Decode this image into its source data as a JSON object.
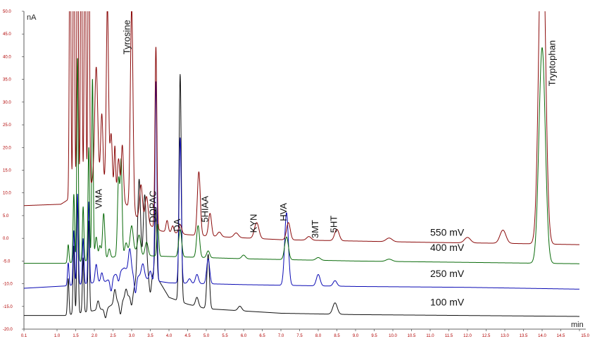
{
  "chart_data": {
    "type": "line",
    "xlabel": "min",
    "ylabel": "nA",
    "xlim": [
      0.1,
      15.0
    ],
    "ylim": [
      -20.0,
      50.0
    ],
    "x_ticks": [
      "0.1",
      "1.0",
      "1.5",
      "2.0",
      "2.5",
      "3.0",
      "3.5",
      "4.0",
      "4.5",
      "5.0",
      "5.5",
      "6.0",
      "6.5",
      "7.0",
      "7.5",
      "8.0",
      "8.5",
      "9.0",
      "9.5",
      "10.0",
      "10.5",
      "11.0",
      "11.5",
      "12.0",
      "12.5",
      "13.0",
      "13.5",
      "14.0",
      "14.5",
      "15.0"
    ],
    "y_ticks": [
      "50.0",
      "45.0",
      "40.0",
      "35.0",
      "30.0",
      "25.0",
      "20.0",
      "15.0",
      "10.0",
      "5.0",
      "0.0",
      "-5.0",
      "-10.0",
      "-15.0",
      "-20.0"
    ],
    "peak_labels": [
      {
        "name": "VMA",
        "x": 2.2,
        "y": 6.5
      },
      {
        "name": "Tyrosine",
        "x": 2.95,
        "y": 40.5
      },
      {
        "name": "DOPAC",
        "x": 3.65,
        "y": 3.5
      },
      {
        "name": "DA",
        "x": 4.3,
        "y": 1.5
      },
      {
        "name": "5HIAA",
        "x": 5.05,
        "y": 3.5
      },
      {
        "name": "KYN",
        "x": 6.35,
        "y": 1.2
      },
      {
        "name": "HVA",
        "x": 7.15,
        "y": 3.8
      },
      {
        "name": "3MT",
        "x": 8.0,
        "y": 0.0
      },
      {
        "name": "5HT",
        "x": 8.5,
        "y": 1.2
      },
      {
        "name": "Tryptophan",
        "x": 14.35,
        "y": 33.5
      }
    ],
    "series": [
      {
        "name": "550 mV",
        "color": "#8b0a0a",
        "label_at": [
          11.0,
          0.6
        ],
        "baseline": [
          [
            0.1,
            7.2
          ],
          [
            1.1,
            7.5
          ],
          [
            1.2,
            8.0
          ],
          [
            2.1,
            13.0
          ],
          [
            2.6,
            10.0
          ],
          [
            3.2,
            4.0
          ],
          [
            3.8,
            1.6
          ],
          [
            4.5,
            0.8
          ],
          [
            5.5,
            0.3
          ],
          [
            7.0,
            -0.3
          ],
          [
            9.0,
            -0.6
          ],
          [
            11.0,
            -0.9
          ],
          [
            13.0,
            -1.1
          ],
          [
            15.0,
            -1.4
          ]
        ],
        "peaks": [
          [
            1.35,
            70,
            0.02
          ],
          [
            1.45,
            70,
            0.02
          ],
          [
            1.55,
            70,
            0.02
          ],
          [
            1.65,
            70,
            0.02
          ],
          [
            1.75,
            70,
            0.02
          ],
          [
            1.85,
            70,
            0.02
          ],
          [
            2.05,
            25,
            0.04
          ],
          [
            2.2,
            15,
            0.03
          ],
          [
            2.35,
            40,
            0.03
          ],
          [
            2.45,
            12,
            0.03
          ],
          [
            2.55,
            10,
            0.02
          ],
          [
            2.65,
            8,
            0.03
          ],
          [
            2.75,
            12,
            0.03
          ],
          [
            3.0,
            45,
            0.035
          ],
          [
            3.25,
            8,
            0.04
          ],
          [
            3.4,
            6,
            0.04
          ],
          [
            3.65,
            40,
            0.025
          ],
          [
            3.95,
            2.5,
            0.03
          ],
          [
            4.1,
            1.5,
            0.03
          ],
          [
            4.3,
            2.0,
            0.04
          ],
          [
            4.8,
            14,
            0.04
          ],
          [
            5.1,
            5,
            0.04
          ],
          [
            5.35,
            1.0,
            0.05
          ],
          [
            5.8,
            1.0,
            0.06
          ],
          [
            6.35,
            3.5,
            0.06
          ],
          [
            7.2,
            3.8,
            0.05
          ],
          [
            7.75,
            0.8,
            0.06
          ],
          [
            8.5,
            2.5,
            0.06
          ],
          [
            9.9,
            0.8,
            0.08
          ],
          [
            12.0,
            1.2,
            0.08
          ],
          [
            12.95,
            2.9,
            0.08
          ],
          [
            14.0,
            78,
            0.085
          ]
        ]
      },
      {
        "name": "400 mV",
        "color": "#0a6b0a",
        "label_at": [
          11.0,
          -2.8
        ],
        "baseline": [
          [
            0.1,
            -5.5
          ],
          [
            1.2,
            -5.5
          ],
          [
            2.3,
            -4.5
          ],
          [
            2.7,
            -3.8
          ],
          [
            3.0,
            -2.2
          ],
          [
            3.3,
            -3.8
          ],
          [
            4.0,
            -4.0
          ],
          [
            6.0,
            -4.5
          ],
          [
            9.0,
            -5.0
          ],
          [
            12.0,
            -5.3
          ],
          [
            15.0,
            -5.6
          ]
        ],
        "peaks": [
          [
            1.3,
            4,
            0.02
          ],
          [
            1.45,
            15,
            0.02
          ],
          [
            1.55,
            45,
            0.02
          ],
          [
            1.7,
            12,
            0.02
          ],
          [
            1.85,
            25,
            0.02
          ],
          [
            1.95,
            40,
            0.02
          ],
          [
            2.05,
            5,
            0.03
          ],
          [
            2.15,
            3,
            0.03
          ],
          [
            2.25,
            10,
            0.03
          ],
          [
            2.4,
            2,
            0.03
          ],
          [
            2.65,
            17,
            0.03
          ],
          [
            2.72,
            20,
            0.025
          ],
          [
            2.85,
            2,
            0.03
          ],
          [
            3.0,
            5,
            0.04
          ],
          [
            3.2,
            4,
            0.04
          ],
          [
            3.4,
            3,
            0.04
          ],
          [
            3.7,
            7,
            0.025
          ],
          [
            4.3,
            6,
            0.04
          ],
          [
            4.78,
            7,
            0.04
          ],
          [
            5.05,
            1.5,
            0.04
          ],
          [
            6.0,
            0.8,
            0.05
          ],
          [
            7.15,
            5.0,
            0.05
          ],
          [
            8.0,
            0.6,
            0.06
          ],
          [
            9.9,
            0.5,
            0.08
          ],
          [
            14.0,
            47.5,
            0.085
          ]
        ]
      },
      {
        "name": "250 mV",
        "color": "#0a0ab4",
        "label_at": [
          11.0,
          -8.5
        ],
        "baseline": [
          [
            0.1,
            -11.0
          ],
          [
            1.2,
            -10.5
          ],
          [
            2.3,
            -9.5
          ],
          [
            2.8,
            -6.5
          ],
          [
            3.1,
            -8.0
          ],
          [
            3.5,
            -9.2
          ],
          [
            4.0,
            -9.8
          ],
          [
            6.0,
            -10.2
          ],
          [
            9.0,
            -10.6
          ],
          [
            12.0,
            -10.8
          ],
          [
            15.0,
            -11.2
          ]
        ],
        "peaks": [
          [
            1.3,
            5,
            0.02
          ],
          [
            1.45,
            12,
            0.02
          ],
          [
            1.55,
            20,
            0.02
          ],
          [
            1.7,
            10,
            0.02
          ],
          [
            1.85,
            18,
            0.02
          ],
          [
            2.05,
            4,
            0.03
          ],
          [
            2.2,
            2,
            0.03
          ],
          [
            2.45,
            -3,
            0.03
          ],
          [
            2.65,
            -2,
            0.03
          ],
          [
            2.95,
            5,
            0.035
          ],
          [
            3.1,
            -4,
            0.03
          ],
          [
            3.3,
            3,
            0.04
          ],
          [
            3.5,
            2,
            0.03
          ],
          [
            3.65,
            44,
            0.025
          ],
          [
            4.3,
            32,
            0.03
          ],
          [
            4.55,
            1.0,
            0.04
          ],
          [
            4.75,
            2.0,
            0.04
          ],
          [
            5.05,
            5.5,
            0.04
          ],
          [
            7.15,
            16.0,
            0.05
          ],
          [
            8.0,
            2.5,
            0.05
          ],
          [
            8.45,
            1.2,
            0.05
          ]
        ]
      },
      {
        "name": "100 mV",
        "color": "#111111",
        "label_at": [
          11.0,
          -14.8
        ],
        "baseline": [
          [
            0.1,
            -17.0
          ],
          [
            1.2,
            -17.0
          ],
          [
            2.3,
            -15.5
          ],
          [
            2.6,
            -14.0
          ],
          [
            2.9,
            -13.0
          ],
          [
            3.2,
            -9.0
          ],
          [
            3.6,
            -7.5
          ],
          [
            4.0,
            -13.0
          ],
          [
            4.5,
            -14.5
          ],
          [
            5.0,
            -15.5
          ],
          [
            7.0,
            -16.5
          ],
          [
            9.0,
            -16.8
          ],
          [
            12.0,
            -17.0
          ],
          [
            15.0,
            -17.2
          ]
        ],
        "peaks": [
          [
            1.3,
            8,
            0.02
          ],
          [
            1.45,
            15,
            0.02
          ],
          [
            1.55,
            25,
            0.02
          ],
          [
            1.7,
            12,
            0.02
          ],
          [
            1.85,
            20,
            0.02
          ],
          [
            2.1,
            2,
            0.03
          ],
          [
            2.3,
            -2,
            0.03
          ],
          [
            2.55,
            3,
            0.03
          ],
          [
            2.7,
            -3,
            0.03
          ],
          [
            2.85,
            2,
            0.03
          ],
          [
            3.0,
            -3,
            0.03
          ],
          [
            3.2,
            22,
            0.04
          ],
          [
            3.35,
            18,
            0.04
          ],
          [
            3.5,
            -4,
            0.03
          ],
          [
            3.65,
            15,
            0.025
          ],
          [
            4.3,
            50,
            0.03
          ],
          [
            4.75,
            2.0,
            0.04
          ],
          [
            5.05,
            12.0,
            0.035
          ],
          [
            5.9,
            1.0,
            0.05
          ],
          [
            8.45,
            2.5,
            0.06
          ]
        ]
      }
    ]
  }
}
